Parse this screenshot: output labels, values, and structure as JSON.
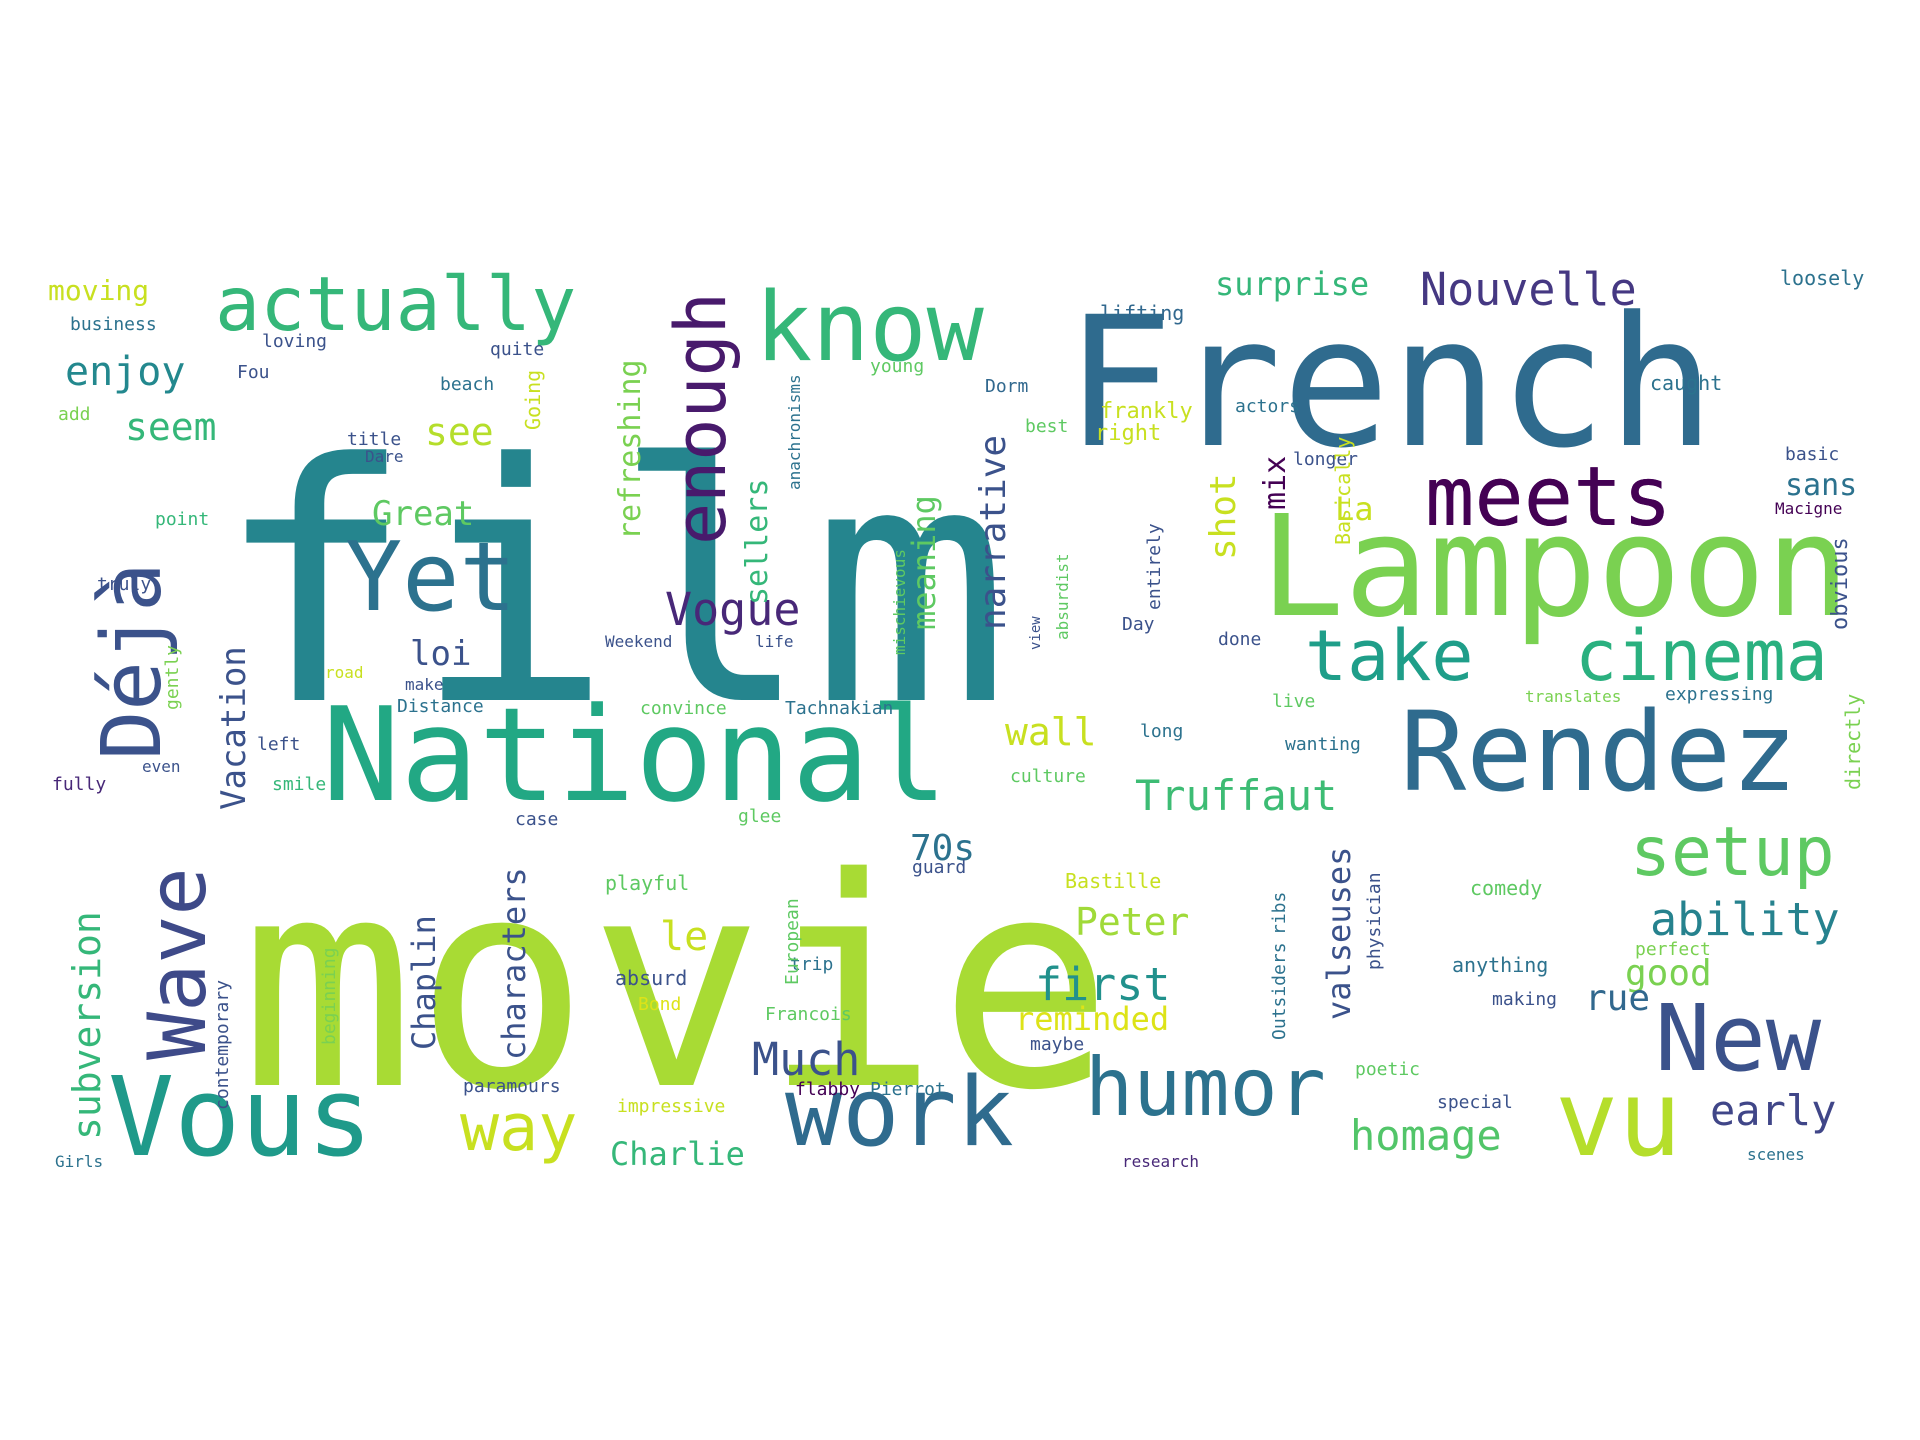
{
  "words": [
    {
      "text": "film",
      "color": "#25858e"
    },
    {
      "text": "movie",
      "color": "#a8db34"
    },
    {
      "text": "French",
      "color": "#2f6b8e"
    },
    {
      "text": "Lampoon",
      "color": "#7ad151"
    },
    {
      "text": "National",
      "color": "#22a884"
    },
    {
      "text": "Rendez",
      "color": "#2f6b8e"
    },
    {
      "text": "Vous",
      "color": "#1f9a8a"
    },
    {
      "text": "work",
      "color": "#2f6b8e"
    },
    {
      "text": "New",
      "color": "#3b528b"
    },
    {
      "text": "vu",
      "color": "#b5de2b"
    },
    {
      "text": "humor",
      "color": "#2c728e"
    },
    {
      "text": "Yet",
      "color": "#2c728e"
    },
    {
      "text": "know",
      "color": "#35b779"
    },
    {
      "text": "meets",
      "color": "#440154"
    },
    {
      "text": "actually",
      "color": "#35b779"
    },
    {
      "text": "cinema",
      "color": "#2ab07f"
    },
    {
      "text": "take",
      "color": "#1f9e89"
    },
    {
      "text": "setup",
      "color": "#5ec962"
    },
    {
      "text": "way",
      "color": "#c8e020"
    },
    {
      "text": "Wave",
      "color": "#3e4a89"
    },
    {
      "text": "Déjà",
      "color": "#3b528b"
    },
    {
      "text": "enough",
      "color": "#481a6c"
    },
    {
      "text": "Nouvelle",
      "color": "#453882"
    },
    {
      "text": "ability",
      "color": "#26828e"
    },
    {
      "text": "Truffaut",
      "color": "#3dbc74"
    },
    {
      "text": "homage",
      "color": "#52c569"
    },
    {
      "text": "early",
      "color": "#404688"
    },
    {
      "text": "first",
      "color": "#21918c"
    },
    {
      "text": "Much",
      "color": "#3b528b"
    },
    {
      "text": "Vogue",
      "color": "#482878"
    },
    {
      "text": "meets",
      "color": "#440154"
    },
    {
      "text": "enjoy",
      "color": "#23888e"
    },
    {
      "text": "seem",
      "color": "#35b779"
    },
    {
      "text": "see",
      "color": "#b5de2b"
    },
    {
      "text": "surprise",
      "color": "#35b779"
    },
    {
      "text": "wall",
      "color": "#c8e020"
    },
    {
      "text": "le",
      "color": "#c8e020"
    },
    {
      "text": "Peter",
      "color": "#a0da39"
    },
    {
      "text": "good",
      "color": "#7ad151"
    },
    {
      "text": "rue",
      "color": "#31688e"
    },
    {
      "text": "70s",
      "color": "#2c728e"
    },
    {
      "text": "Charlie",
      "color": "#35b779"
    },
    {
      "text": "reminded",
      "color": "#dde318"
    },
    {
      "text": "loi",
      "color": "#3b528b"
    },
    {
      "text": "Great",
      "color": "#5ec962"
    },
    {
      "text": "La",
      "color": "#c8e020"
    },
    {
      "text": "sans",
      "color": "#2c728e"
    },
    {
      "text": "moving",
      "color": "#c8e020"
    },
    {
      "text": "business",
      "color": "#2c728e"
    },
    {
      "text": "loving",
      "color": "#3b528b"
    },
    {
      "text": "Fou",
      "color": "#3b528b"
    },
    {
      "text": "add",
      "color": "#7ad151"
    },
    {
      "text": "quite",
      "color": "#3b528b"
    },
    {
      "text": "beach",
      "color": "#2c728e"
    },
    {
      "text": "young",
      "color": "#5ec962"
    },
    {
      "text": "Dorm",
      "color": "#31688e"
    },
    {
      "text": "lifting",
      "color": "#31688e"
    },
    {
      "text": "frankly",
      "color": "#c8e020"
    },
    {
      "text": "right",
      "color": "#c8e020"
    },
    {
      "text": "actors",
      "color": "#2c728e"
    },
    {
      "text": "best",
      "color": "#5ec962"
    },
    {
      "text": "caught",
      "color": "#2c728e"
    },
    {
      "text": "loosely",
      "color": "#2c728e"
    },
    {
      "text": "basic",
      "color": "#3b528b"
    },
    {
      "text": "title",
      "color": "#3b528b"
    },
    {
      "text": "Dare",
      "color": "#3b528b"
    },
    {
      "text": "point",
      "color": "#35b779"
    },
    {
      "text": "truly",
      "color": "#3b528b"
    },
    {
      "text": "longer",
      "color": "#3b528b"
    },
    {
      "text": "Macigne",
      "color": "#440154"
    },
    {
      "text": "make",
      "color": "#3b528b"
    },
    {
      "text": "Distance",
      "color": "#2c728e"
    },
    {
      "text": "convince",
      "color": "#5ec962"
    },
    {
      "text": "Tachnakian",
      "color": "#2c728e"
    },
    {
      "text": "long",
      "color": "#2c728e"
    },
    {
      "text": "live",
      "color": "#5ec962"
    },
    {
      "text": "translates",
      "color": "#7ad151"
    },
    {
      "text": "expressing",
      "color": "#2c728e"
    },
    {
      "text": "left",
      "color": "#3b528b"
    },
    {
      "text": "even",
      "color": "#3b528b"
    },
    {
      "text": "smile",
      "color": "#35b779"
    },
    {
      "text": "fully",
      "color": "#482878"
    },
    {
      "text": "culture",
      "color": "#5ec962"
    },
    {
      "text": "wanting",
      "color": "#2c728e"
    },
    {
      "text": "case",
      "color": "#3b528b"
    },
    {
      "text": "glee",
      "color": "#5ec962"
    },
    {
      "text": "guard",
      "color": "#3b528b"
    },
    {
      "text": "Bastille",
      "color": "#c8e020"
    },
    {
      "text": "comedy",
      "color": "#5ec962"
    },
    {
      "text": "playful",
      "color": "#5ec962"
    },
    {
      "text": "trip",
      "color": "#2c728e"
    },
    {
      "text": "absurd",
      "color": "#3b528b"
    },
    {
      "text": "Bond",
      "color": "#dde318"
    },
    {
      "text": "anything",
      "color": "#2c728e"
    },
    {
      "text": "perfect",
      "color": "#7ad151"
    },
    {
      "text": "making",
      "color": "#3b528b"
    },
    {
      "text": "Francois",
      "color": "#5ec962"
    },
    {
      "text": "maybe",
      "color": "#3b528b"
    },
    {
      "text": "poetic",
      "color": "#5ec962"
    },
    {
      "text": "paramours",
      "color": "#3b528b"
    },
    {
      "text": "flabby",
      "color": "#440154"
    },
    {
      "text": "Pierrot",
      "color": "#2c728e"
    },
    {
      "text": "impressive",
      "color": "#c8e020"
    },
    {
      "text": "special",
      "color": "#3b528b"
    },
    {
      "text": "research",
      "color": "#482878"
    },
    {
      "text": "scenes",
      "color": "#2c728e"
    },
    {
      "text": "Girls",
      "color": "#2c728e"
    },
    {
      "text": "Weekend",
      "color": "#3b528b"
    },
    {
      "text": "life",
      "color": "#3b528b"
    },
    {
      "text": "road",
      "color": "#c8e020"
    },
    {
      "text": "view",
      "color": "#3b528b"
    },
    {
      "text": "Day",
      "color": "#3b528b"
    },
    {
      "text": "done",
      "color": "#3b528b"
    },
    {
      "text": "Going",
      "color": "#c8e020"
    },
    {
      "text": "Vacation",
      "color": "#3b528b"
    },
    {
      "text": "subversion",
      "color": "#35b779"
    },
    {
      "text": "Chaplin",
      "color": "#3b528b"
    },
    {
      "text": "characters",
      "color": "#3b528b"
    },
    {
      "text": "sellers",
      "color": "#35b779"
    },
    {
      "text": "refreshing",
      "color": "#7ad151"
    },
    {
      "text": "meaning",
      "color": "#5ec962"
    },
    {
      "text": "narrative",
      "color": "#3b528b"
    },
    {
      "text": "shot",
      "color": "#c8e020"
    },
    {
      "text": "mix",
      "color": "#440154"
    },
    {
      "text": "valseuses",
      "color": "#3b528b"
    },
    {
      "text": "Basically",
      "color": "#c8e020"
    },
    {
      "text": "physician",
      "color": "#3b528b"
    },
    {
      "text": "Outsiders",
      "color": "#2c728e"
    },
    {
      "text": "ribs",
      "color": "#2c728e"
    },
    {
      "text": "entirely",
      "color": "#3b528b"
    },
    {
      "text": "absurdist",
      "color": "#5ec962"
    },
    {
      "text": "European",
      "color": "#5ec962"
    },
    {
      "text": "contemporary",
      "color": "#3b528b"
    },
    {
      "text": "beginning",
      "color": "#7ad151"
    },
    {
      "text": "obvious",
      "color": "#3b528b"
    },
    {
      "text": "directly",
      "color": "#7ad151"
    },
    {
      "text": "gently",
      "color": "#7ad151"
    },
    {
      "text": "mischievous",
      "color": "#5ec962"
    },
    {
      "text": "anachronisms",
      "color": "#2c728e"
    }
  ]
}
